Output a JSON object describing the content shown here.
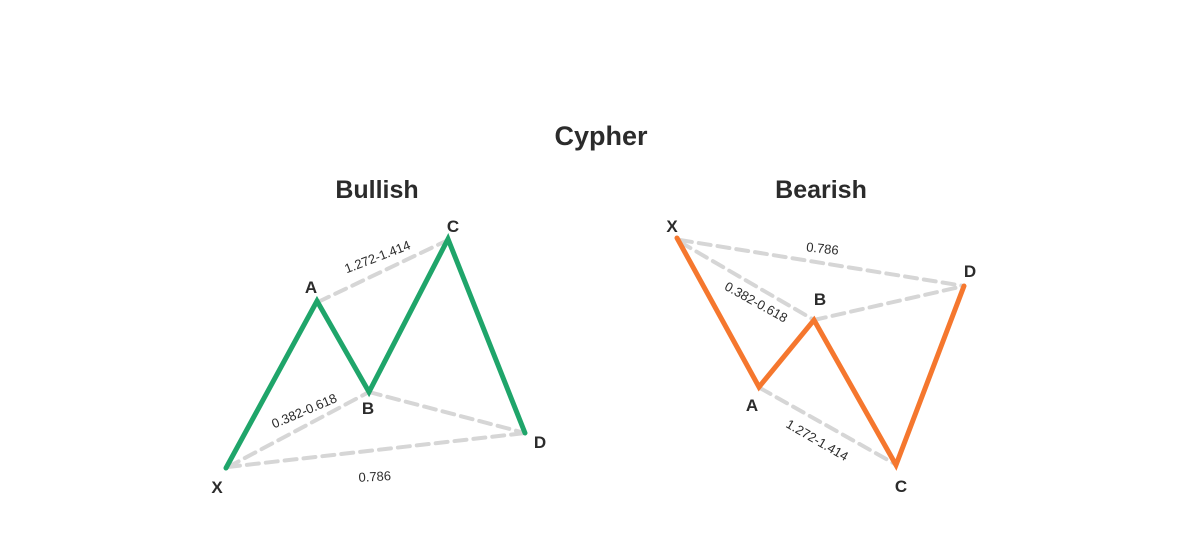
{
  "title": "Cypher",
  "bullish": {
    "label": "Bullish",
    "color": "#1fa56a",
    "points": {
      "X": "X",
      "A": "A",
      "B": "B",
      "C": "C",
      "D": "D"
    },
    "ratios": {
      "AC": "1.272-1.414",
      "XB": "0.382-0.618",
      "XD": "0.786"
    }
  },
  "bearish": {
    "label": "Bearish",
    "color": "#f5772e",
    "points": {
      "X": "X",
      "A": "A",
      "B": "B",
      "C": "C",
      "D": "D"
    },
    "ratios": {
      "XD": "0.786",
      "XB": "0.382-0.618",
      "AC": "1.272-1.414"
    }
  },
  "dash_color": "#d6d6d6"
}
